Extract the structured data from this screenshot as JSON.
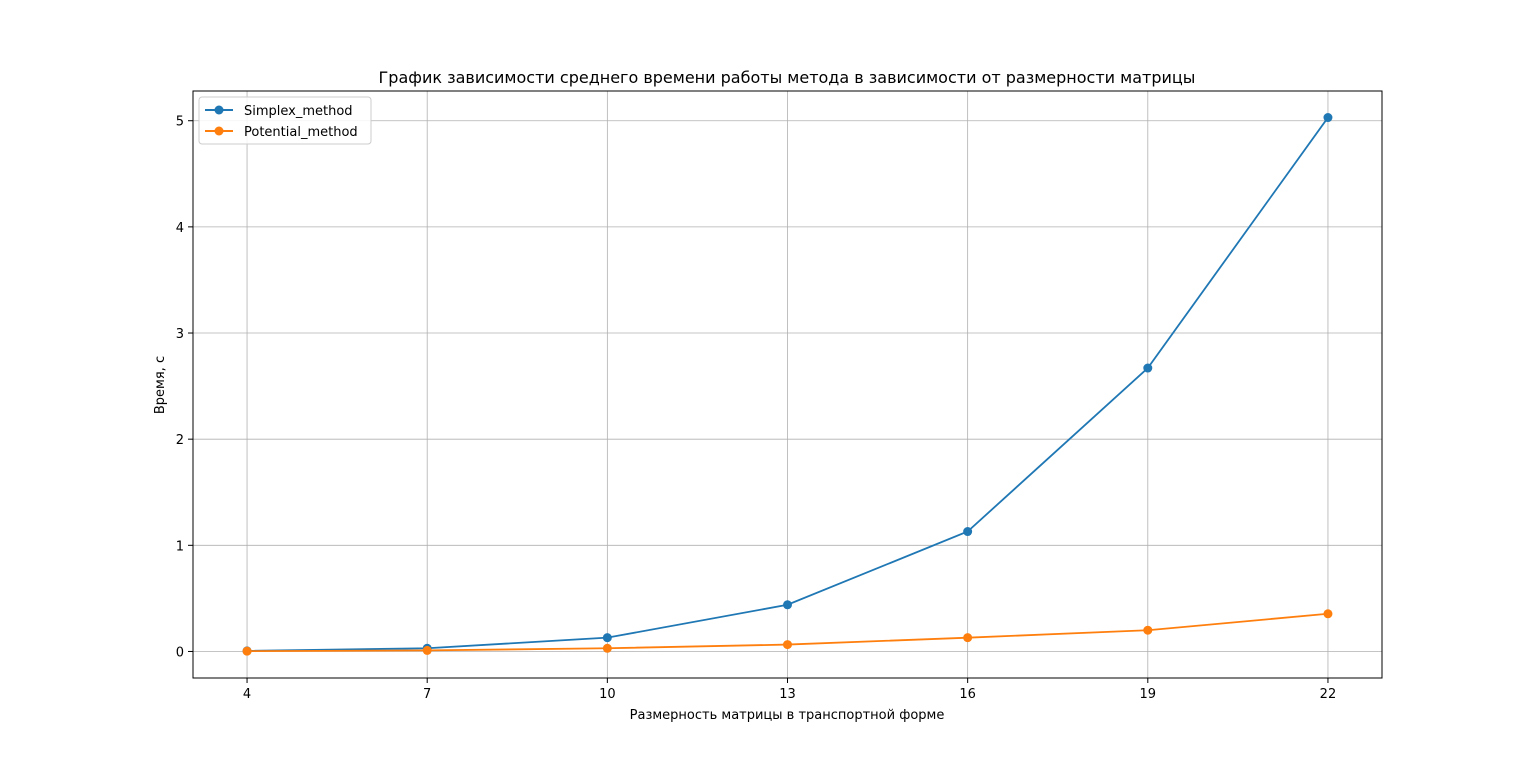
{
  "chart_data": {
    "type": "line",
    "title": "График зависимости среднего времени работы метода в зависимости от размерности матрицы",
    "xlabel": "Размерность матрицы в транспортной форме",
    "ylabel": "Время, с",
    "x": [
      4,
      7,
      10,
      13,
      16,
      19,
      22
    ],
    "xticks": [
      "4",
      "7",
      "10",
      "13",
      "16",
      "19",
      "22"
    ],
    "yticks": [
      "0",
      "1",
      "2",
      "3",
      "4",
      "5"
    ],
    "xlim": [
      3.1,
      22.9
    ],
    "ylim": [
      -0.25,
      5.28
    ],
    "grid": true,
    "legend_position": "upper-left",
    "series": [
      {
        "name": "Simplex_method",
        "color": "#1f77b4",
        "values": [
          0.005,
          0.03,
          0.13,
          0.44,
          1.13,
          2.67,
          5.03
        ]
      },
      {
        "name": "Potential_method",
        "color": "#ff7f0e",
        "values": [
          0.003,
          0.01,
          0.03,
          0.065,
          0.13,
          0.2,
          0.355
        ]
      }
    ]
  }
}
